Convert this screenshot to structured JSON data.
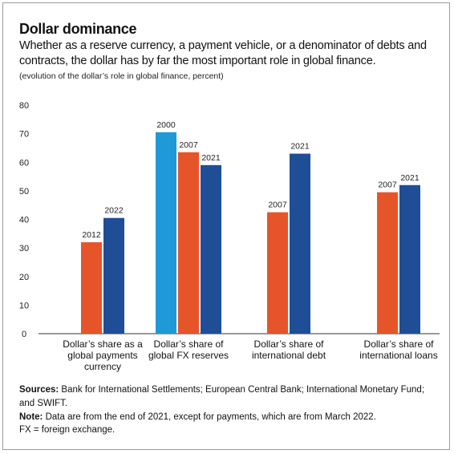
{
  "header": {
    "title": "Dollar dominance",
    "subtitle": "Whether as a reserve currency, a payment vehicle, or a denominator of debts and contracts, the dollar has by far the most important role in global finance.",
    "units": "(evolution of the dollar’s role in global finance, percent)"
  },
  "footer": {
    "sources_label": "Sources:",
    "sources_text": "Bank for International Settlements; European Central Bank; International Monetary Fund; and SWIFT.",
    "note_label": "Note:",
    "note_text": "Data are from the end of 2021, except for payments, which are from March 2022.",
    "note_text_2": "FX = foreign exchange."
  },
  "colors": {
    "2000": "#1f9ad6",
    "2007": "#e6552a",
    "2012": "#e6552a",
    "2021": "#1f4e96",
    "2022": "#1f4e96",
    "axis": "#333333"
  },
  "chart_data": {
    "type": "bar",
    "ylim": [
      0,
      80
    ],
    "yticks": [
      0,
      10,
      20,
      30,
      40,
      50,
      60,
      70,
      80
    ],
    "grid": false,
    "groups": [
      {
        "label_lines": [
          "Dollar’s share as a",
          "global payments",
          "currency"
        ],
        "bars": [
          {
            "year": "2012",
            "value": 32
          },
          {
            "year": "2022",
            "value": 40.5
          }
        ]
      },
      {
        "label_lines": [
          "Dollar’s share of",
          "global FX reserves"
        ],
        "bars": [
          {
            "year": "2000",
            "value": 70.5
          },
          {
            "year": "2007",
            "value": 63.5
          },
          {
            "year": "2021",
            "value": 59
          }
        ]
      },
      {
        "label_lines": [
          "Dollar’s share of",
          "international debt"
        ],
        "bars": [
          {
            "year": "2007",
            "value": 42.5
          },
          {
            "year": "2021",
            "value": 63
          }
        ]
      },
      {
        "label_lines": [
          "Dollar’s share of",
          "international loans"
        ],
        "bars": [
          {
            "year": "2007",
            "value": 49.5
          },
          {
            "year": "2021",
            "value": 52
          }
        ]
      }
    ]
  }
}
